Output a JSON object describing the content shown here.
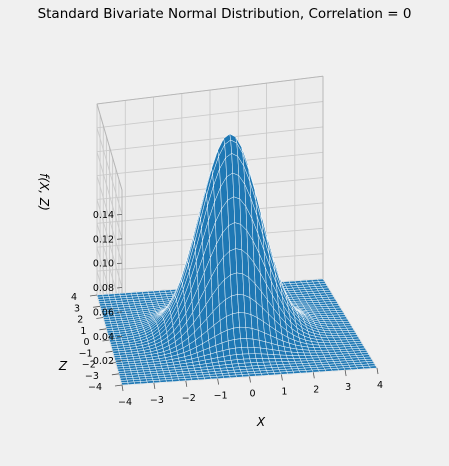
{
  "chart_data": {
    "type": "surface",
    "title": "Standard Bivariate Normal Distribution, Correlation = 0",
    "function": "f(x, z) = exp(-(x^2 + z^2) / 2) / (2*pi)",
    "correlation": 0,
    "xlabel": "X",
    "ylabel": "Z",
    "zlabel": "f(X, Z)",
    "x_range": [
      -4,
      4
    ],
    "y_range": [
      -4,
      4
    ],
    "z_range": [
      0,
      0.16
    ],
    "x_ticks": [
      -4,
      -3,
      -2,
      -1,
      0,
      1,
      2,
      3,
      4
    ],
    "y_ticks": [
      -4,
      -3,
      -2,
      -1,
      0,
      1,
      2,
      3,
      4
    ],
    "z_ticks": [
      0.02,
      0.04,
      0.06,
      0.08,
      0.1,
      0.12,
      0.14
    ],
    "x_tick_labels": [
      "−4",
      "−3",
      "−2",
      "−1",
      "0",
      "1",
      "2",
      "3",
      "4"
    ],
    "y_tick_labels": [
      "−4",
      "−3",
      "−2",
      "−1",
      "0",
      "1",
      "2",
      "3",
      "4"
    ],
    "z_tick_labels": [
      "0.02",
      "0.04",
      "0.06",
      "0.08",
      "0.10",
      "0.12",
      "0.14"
    ],
    "peak_value": 0.159,
    "grid": true,
    "surface_color": "#1f78b4",
    "wire_color": "#ffffff",
    "background_color": "#f0f0f0"
  }
}
